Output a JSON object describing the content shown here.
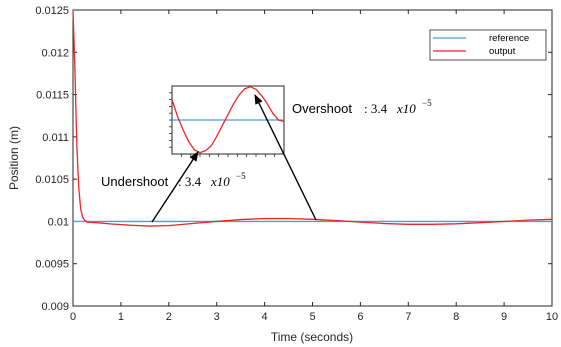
{
  "chart_data": {
    "type": "line",
    "xlabel": "Time (seconds)",
    "ylabel": "Position (m)",
    "xlim": [
      0,
      10
    ],
    "ylim": [
      0.009,
      0.0125
    ],
    "xticks": [
      "0",
      "1",
      "2",
      "3",
      "4",
      "5",
      "6",
      "7",
      "8",
      "9",
      "10"
    ],
    "yticks": [
      "0.009",
      "0.0095",
      "0.01",
      "0.0105",
      "0.011",
      "0.0115",
      "0.012",
      "0.0125"
    ],
    "legend_position": "top-right",
    "grid": false,
    "series": [
      {
        "name": "reference",
        "color": "#4a9fd0",
        "x": [
          0,
          10
        ],
        "y": [
          0.01,
          0.01
        ]
      },
      {
        "name": "output",
        "color": "#e8282b",
        "x": [
          0.0,
          0.04,
          0.08,
          0.12,
          0.16,
          0.2,
          0.25,
          0.3,
          0.5,
          0.8,
          1.2,
          1.6,
          2.0,
          2.5,
          3.0,
          3.5,
          4.0,
          4.5,
          5.0,
          5.5,
          6.0,
          6.5,
          7.0,
          7.5,
          8.0,
          8.5,
          9.0,
          9.5,
          10.0
        ],
        "y": [
          0.0125,
          0.0118,
          0.0109,
          0.0104,
          0.01015,
          0.01005,
          0.01001,
          0.00999,
          0.009985,
          0.00997,
          0.009955,
          0.009945,
          0.00995,
          0.009975,
          0.01,
          0.010022,
          0.010034,
          0.010035,
          0.010025,
          0.01001,
          0.009992,
          0.009975,
          0.009966,
          0.009966,
          0.009972,
          0.009985,
          0.01,
          0.010015,
          0.010025
        ]
      }
    ],
    "annotations": [
      {
        "label": "Overshoot",
        "value_text": ": 3.4",
        "math": "x10",
        "exponent": "−5"
      },
      {
        "label": "Undershoot",
        "value_text": ": 3.4",
        "math": "x10",
        "exponent": "−5"
      }
    ],
    "inset": {
      "reference_y": 0.5,
      "output_x": [
        0,
        0.05,
        0.1,
        0.15,
        0.2,
        0.25,
        0.3,
        0.35,
        0.4,
        0.45,
        0.5,
        0.55,
        0.6,
        0.65,
        0.7,
        0.75,
        0.8,
        0.85,
        0.9,
        0.95,
        1.0
      ],
      "output_y": [
        0.8,
        0.55,
        0.35,
        0.18,
        0.06,
        0.02,
        0.05,
        0.12,
        0.26,
        0.42,
        0.58,
        0.74,
        0.87,
        0.96,
        0.99,
        0.95,
        0.86,
        0.74,
        0.6,
        0.5,
        0.48
      ]
    }
  }
}
